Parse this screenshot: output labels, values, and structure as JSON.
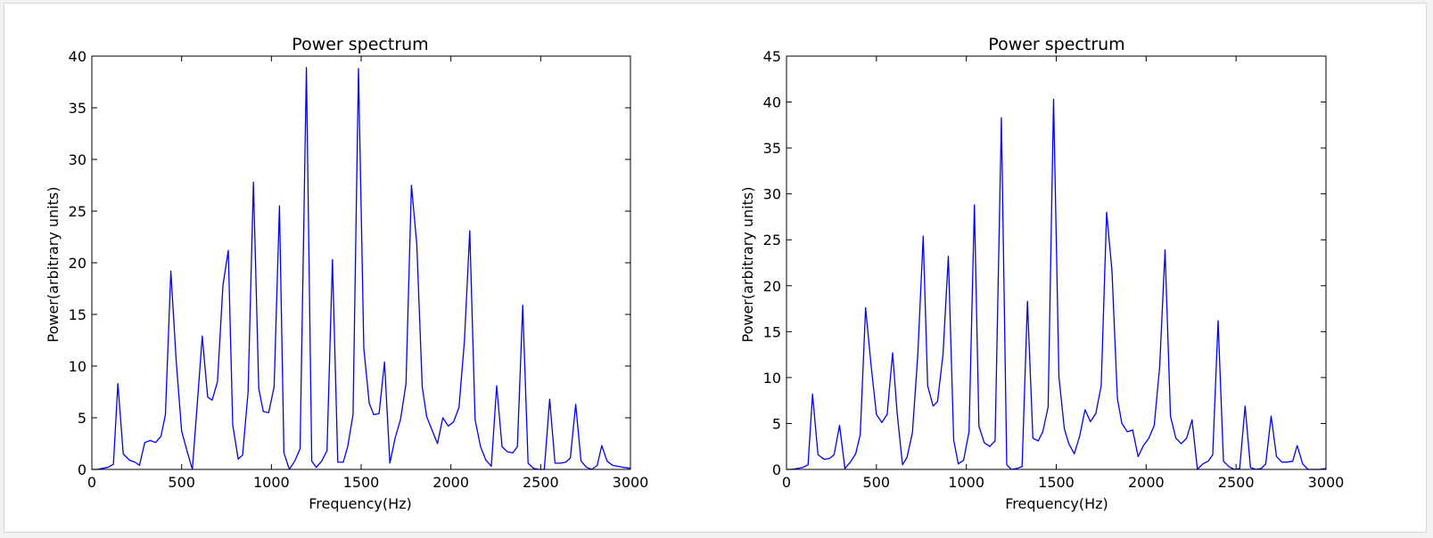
{
  "chart_data": [
    {
      "type": "line",
      "title": "Power spectrum",
      "xlabel": "Frequency(Hz)",
      "ylabel": "Power(arbitrary units)",
      "xlim": [
        0,
        3000
      ],
      "ylim": [
        0,
        40
      ],
      "xticks": [
        0,
        500,
        1000,
        1500,
        2000,
        2500,
        3000
      ],
      "yticks": [
        0,
        5,
        10,
        15,
        20,
        25,
        30,
        35,
        40
      ],
      "grid": false,
      "line_color": "#0000ff",
      "x": [
        0,
        30,
        60,
        90,
        120,
        145,
        175,
        210,
        240,
        265,
        295,
        325,
        355,
        385,
        410,
        440,
        470,
        500,
        530,
        560,
        590,
        615,
        645,
        670,
        700,
        730,
        760,
        785,
        815,
        840,
        870,
        900,
        930,
        955,
        985,
        1015,
        1045,
        1070,
        1100,
        1130,
        1160,
        1195,
        1225,
        1250,
        1280,
        1310,
        1340,
        1370,
        1400,
        1425,
        1455,
        1485,
        1515,
        1545,
        1570,
        1600,
        1630,
        1660,
        1690,
        1720,
        1750,
        1780,
        1810,
        1840,
        1865,
        1895,
        1925,
        1955,
        1985,
        2015,
        2045,
        2075,
        2105,
        2135,
        2165,
        2195,
        2225,
        2255,
        2285,
        2315,
        2345,
        2370,
        2400,
        2430,
        2460,
        2490,
        2520,
        2550,
        2580,
        2610,
        2640,
        2665,
        2695,
        2725,
        2755,
        2785,
        2815,
        2840,
        2870,
        2900,
        2930,
        2960,
        3000
      ],
      "y": [
        0,
        0,
        0.1,
        0.2,
        0.5,
        8.3,
        1.5,
        0.9,
        0.7,
        0.4,
        2.6,
        2.8,
        2.6,
        3.2,
        5.3,
        19.2,
        10.5,
        3.7,
        1.8,
        0,
        7,
        12.9,
        7,
        6.7,
        8.5,
        17.8,
        21.2,
        4.3,
        1,
        1.4,
        7.5,
        27.8,
        7.8,
        5.6,
        5.5,
        8,
        25.5,
        1.6,
        0,
        0.8,
        2,
        38.9,
        0.8,
        0.2,
        0.8,
        1.8,
        20.3,
        0.7,
        0.7,
        2.2,
        5.3,
        38.8,
        11.7,
        6.4,
        5.3,
        5.4,
        10.4,
        0.6,
        3.1,
        4.9,
        8.3,
        27.5,
        21.8,
        8,
        5.1,
        3.8,
        2.5,
        5,
        4.2,
        4.6,
        6,
        12.4,
        23.1,
        4.8,
        2.2,
        0.9,
        0.3,
        8.1,
        2.2,
        1.7,
        1.6,
        2.2,
        15.9,
        0.6,
        0.1,
        0,
        0,
        6.8,
        0.6,
        0.6,
        0.7,
        1.1,
        6.3,
        0.8,
        0.2,
        0,
        0.4,
        2.3,
        0.8,
        0.4,
        0.3,
        0.2,
        0.1
      ]
    },
    {
      "type": "line",
      "title": "Power spectrum",
      "xlabel": "Frequency(Hz)",
      "ylabel": "Power(arbitrary units)",
      "xlim": [
        0,
        3000
      ],
      "ylim": [
        0,
        45
      ],
      "xticks": [
        0,
        500,
        1000,
        1500,
        2000,
        2500,
        3000
      ],
      "yticks": [
        0,
        5,
        10,
        15,
        20,
        25,
        30,
        35,
        40,
        45
      ],
      "grid": false,
      "line_color": "#0000ff",
      "x": [
        0,
        30,
        60,
        90,
        120,
        145,
        175,
        210,
        240,
        265,
        295,
        325,
        355,
        385,
        410,
        440,
        470,
        500,
        530,
        560,
        590,
        615,
        645,
        670,
        700,
        730,
        760,
        785,
        815,
        840,
        870,
        900,
        930,
        955,
        985,
        1015,
        1045,
        1070,
        1100,
        1130,
        1160,
        1195,
        1225,
        1250,
        1280,
        1310,
        1340,
        1370,
        1400,
        1425,
        1455,
        1485,
        1515,
        1545,
        1570,
        1600,
        1630,
        1660,
        1690,
        1720,
        1750,
        1780,
        1810,
        1840,
        1865,
        1895,
        1925,
        1955,
        1985,
        2015,
        2045,
        2075,
        2105,
        2135,
        2165,
        2195,
        2225,
        2255,
        2285,
        2315,
        2345,
        2370,
        2400,
        2430,
        2460,
        2490,
        2520,
        2550,
        2580,
        2610,
        2640,
        2665,
        2695,
        2725,
        2755,
        2785,
        2815,
        2840,
        2870,
        2900,
        2930,
        2960,
        3000
      ],
      "y": [
        0,
        0,
        0.1,
        0.2,
        0.5,
        8.2,
        1.6,
        1.1,
        1.2,
        1.6,
        4.8,
        0.1,
        0.8,
        1.7,
        3.8,
        17.6,
        11.4,
        6,
        5.1,
        6,
        12.7,
        6.2,
        0.5,
        1.3,
        4,
        12.4,
        25.4,
        9.1,
        6.9,
        7.4,
        12.5,
        23.2,
        3.2,
        0.6,
        1,
        4.1,
        28.8,
        4.7,
        2.9,
        2.5,
        3.1,
        38.3,
        0.5,
        0,
        0.1,
        0.3,
        18.3,
        3.4,
        3.1,
        4.1,
        6.8,
        40.3,
        10.1,
        4.4,
        2.8,
        1.7,
        3.6,
        6.5,
        5.2,
        6.1,
        9.1,
        28,
        21.6,
        7.7,
        5,
        4.1,
        4.3,
        1.4,
        2.6,
        3.4,
        4.8,
        11.2,
        23.9,
        5.8,
        3.4,
        2.8,
        3.4,
        5.4,
        0,
        0.6,
        0.9,
        1.6,
        16.2,
        0.9,
        0.3,
        0,
        0.1,
        6.9,
        0.2,
        0,
        0.1,
        0.6,
        5.8,
        1.4,
        0.8,
        0.8,
        0.9,
        2.6,
        0.6,
        0,
        0,
        0,
        0.1
      ]
    }
  ]
}
